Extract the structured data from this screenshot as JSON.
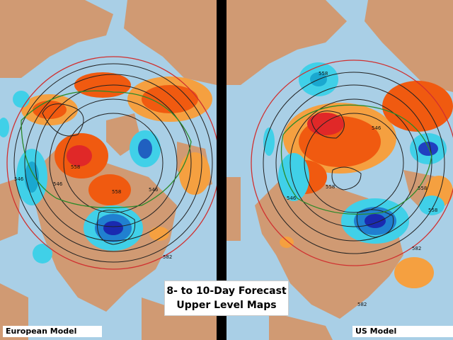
{
  "title": {
    "line1": "8- to 10-Day Forecast",
    "line2": "Upper Level Maps"
  },
  "maps": {
    "left": {
      "model": "European Model",
      "contour_labels": [
        "558",
        "546",
        "546",
        "558",
        "546",
        "582"
      ]
    },
    "right": {
      "model": "US Model",
      "contour_labels": [
        "558",
        "546",
        "558",
        "558",
        "546",
        "558",
        "582",
        "582"
      ]
    }
  },
  "colors": {
    "ocean": "#a9cfe6",
    "land": "#d09a73",
    "ridge_anomaly": "#f05a10",
    "trough_anomaly": "#20c0e0",
    "contour": "#222222"
  }
}
